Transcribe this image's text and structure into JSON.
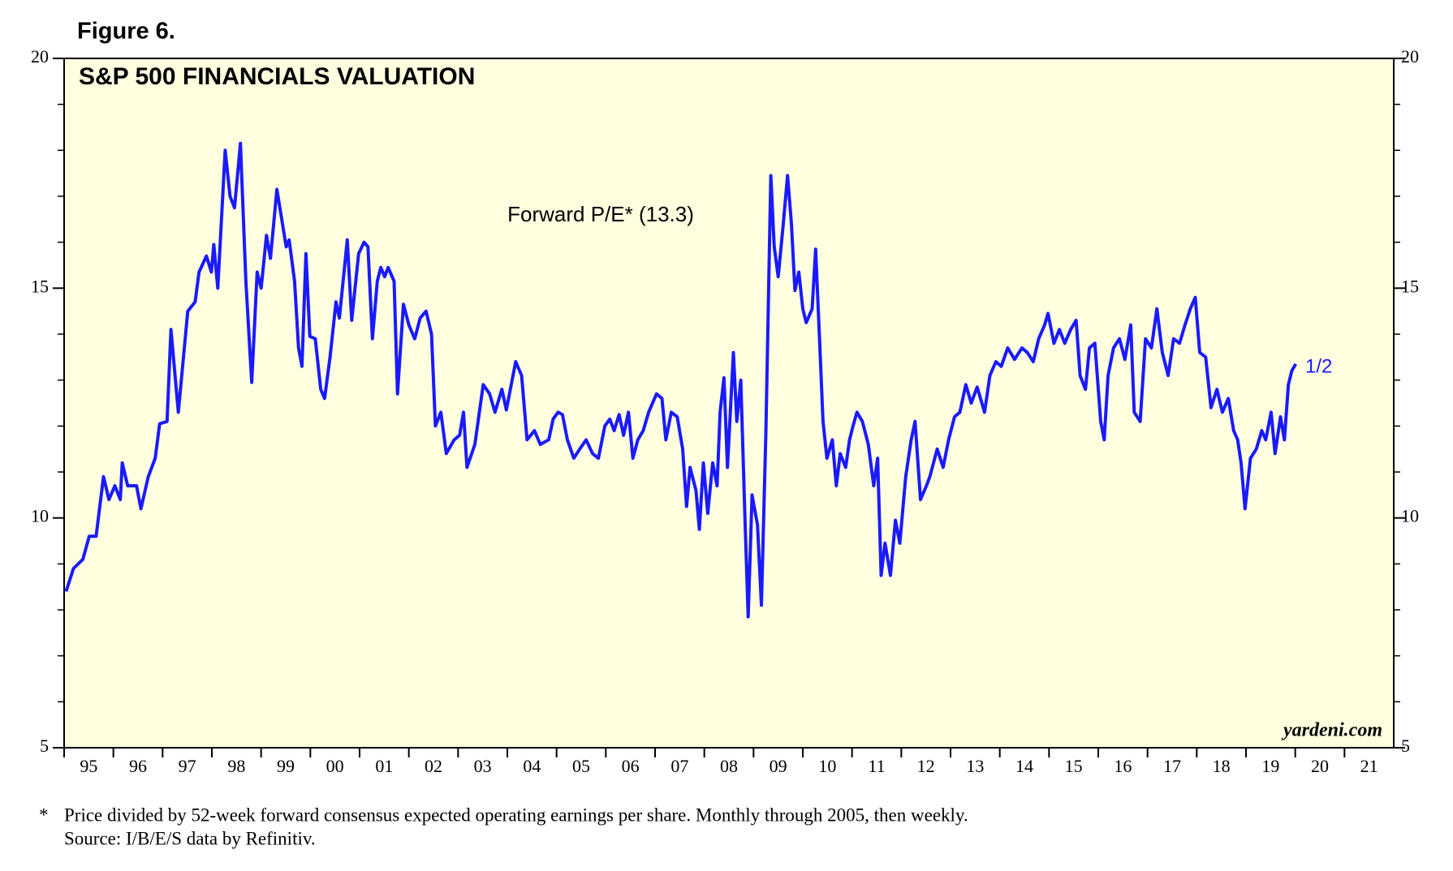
{
  "chart_data": {
    "type": "line",
    "figure_label": "Figure 6.",
    "title": "S&P 500 FINANCIALS VALUATION",
    "annotation": "Forward P/E* (13.3)",
    "end_label": "1/2",
    "watermark": "yardeni.com",
    "footnote_marker": "*",
    "footnote": "Price divided by 52-week forward consensus expected operating earnings per share. Monthly through 2005, then weekly.",
    "source": "Source: I/B/E/S data by Refinitiv.",
    "background": "#ffffe0",
    "series": [
      {
        "name": "Forward P/E",
        "color": "#1a1aff",
        "x": [
          1995.04,
          1995.19,
          1995.38,
          1995.51,
          1995.65,
          1995.8,
          1995.91,
          1996.03,
          1996.14,
          1996.18,
          1996.29,
          1996.47,
          1996.56,
          1996.71,
          1996.85,
          1996.94,
          1997.09,
          1997.17,
          1997.32,
          1997.51,
          1997.66,
          1997.74,
          1997.89,
          1997.99,
          1998.04,
          1998.12,
          1998.27,
          1998.37,
          1998.46,
          1998.58,
          1998.69,
          1998.81,
          1998.92,
          1999.0,
          1999.11,
          1999.19,
          1999.32,
          1999.51,
          1999.57,
          1999.68,
          1999.76,
          1999.83,
          1999.91,
          1999.99,
          2000.1,
          2000.21,
          2000.29,
          2000.4,
          2000.52,
          2000.59,
          2000.75,
          2000.84,
          2000.98,
          2001.09,
          2001.17,
          2001.26,
          2001.36,
          2001.43,
          2001.51,
          2001.58,
          2001.7,
          2001.77,
          2001.89,
          2002.0,
          2002.12,
          2002.23,
          2002.35,
          2002.46,
          2002.54,
          2002.65,
          2002.76,
          2002.92,
          2003.03,
          2003.11,
          2003.18,
          2003.34,
          2003.51,
          2003.64,
          2003.75,
          2003.89,
          2003.98,
          2004.17,
          2004.29,
          2004.4,
          2004.55,
          2004.67,
          2004.84,
          2004.93,
          2005.03,
          2005.12,
          2005.22,
          2005.35,
          2005.47,
          2005.6,
          2005.73,
          2005.85,
          2005.98,
          2006.08,
          2006.17,
          2006.27,
          2006.36,
          2006.46,
          2006.55,
          2006.65,
          2006.76,
          2006.87,
          2007.03,
          2007.14,
          2007.22,
          2007.33,
          2007.45,
          2007.56,
          2007.64,
          2007.71,
          2007.83,
          2007.9,
          2007.98,
          2008.07,
          2008.17,
          2008.26,
          2008.32,
          2008.4,
          2008.47,
          2008.59,
          2008.66,
          2008.74,
          2008.83,
          2008.89,
          2008.97,
          2009.08,
          2009.16,
          2009.25,
          2009.35,
          2009.42,
          2009.5,
          2009.6,
          2009.69,
          2009.77,
          2009.84,
          2009.92,
          2010.0,
          2010.07,
          2010.19,
          2010.26,
          2010.34,
          2010.41,
          2010.49,
          2010.6,
          2010.68,
          2010.76,
          2010.87,
          2010.95,
          2011.02,
          2011.1,
          2011.21,
          2011.33,
          2011.44,
          2011.52,
          2011.59,
          2011.67,
          2011.78,
          2011.88,
          2011.97,
          2012.09,
          2012.2,
          2012.28,
          2012.39,
          2012.51,
          2012.58,
          2012.73,
          2012.85,
          2012.96,
          2013.08,
          2013.19,
          2013.31,
          2013.42,
          2013.54,
          2013.69,
          2013.8,
          2013.92,
          2014.03,
          2014.16,
          2014.3,
          2014.45,
          2014.56,
          2014.68,
          2014.79,
          2014.91,
          2014.98,
          2015.1,
          2015.21,
          2015.32,
          2015.44,
          2015.55,
          2015.63,
          2015.74,
          2015.82,
          2015.93,
          2016.05,
          2016.12,
          2016.2,
          2016.31,
          2016.43,
          2016.54,
          2016.66,
          2016.73,
          2016.85,
          2016.96,
          2017.08,
          2017.19,
          2017.3,
          2017.42,
          2017.53,
          2017.65,
          2017.76,
          2017.87,
          2017.97,
          2018.06,
          2018.18,
          2018.29,
          2018.41,
          2018.52,
          2018.64,
          2018.75,
          2018.83,
          2018.9,
          2018.98,
          2019.09,
          2019.21,
          2019.32,
          2019.4,
          2019.51,
          2019.59,
          2019.7,
          2019.78,
          2019.86,
          2019.93,
          2020.01
        ],
        "values": [
          8.4,
          8.9,
          9.1,
          9.6,
          9.6,
          10.9,
          10.4,
          10.7,
          10.4,
          11.2,
          10.7,
          10.7,
          10.2,
          10.9,
          11.3,
          12.05,
          12.1,
          14.1,
          12.3,
          14.5,
          14.7,
          15.35,
          15.7,
          15.35,
          15.95,
          15.0,
          18.0,
          17.0,
          16.75,
          18.15,
          15.15,
          12.95,
          15.35,
          15.0,
          16.15,
          15.65,
          17.15,
          15.9,
          16.05,
          15.15,
          13.7,
          13.3,
          15.75,
          13.95,
          13.9,
          12.8,
          12.6,
          13.5,
          14.7,
          14.35,
          16.05,
          14.3,
          15.75,
          16.0,
          15.9,
          13.9,
          15.15,
          15.45,
          15.25,
          15.45,
          15.15,
          12.7,
          14.65,
          14.2,
          13.9,
          14.35,
          14.5,
          14.0,
          12.0,
          12.3,
          11.4,
          11.7,
          11.8,
          12.3,
          11.1,
          11.6,
          12.9,
          12.7,
          12.3,
          12.8,
          12.35,
          13.4,
          13.1,
          11.7,
          11.9,
          11.6,
          11.7,
          12.15,
          12.3,
          12.25,
          11.7,
          11.3,
          11.5,
          11.7,
          11.4,
          11.3,
          12.0,
          12.15,
          11.9,
          12.25,
          11.8,
          12.3,
          11.3,
          11.7,
          11.9,
          12.3,
          12.7,
          12.6,
          11.7,
          12.3,
          12.2,
          11.5,
          10.25,
          11.1,
          10.6,
          9.75,
          11.2,
          10.1,
          11.2,
          10.7,
          12.3,
          13.05,
          11.1,
          13.6,
          12.1,
          13.0,
          9.85,
          7.85,
          10.5,
          9.85,
          8.1,
          11.85,
          17.45,
          15.9,
          15.25,
          16.35,
          17.45,
          16.4,
          14.95,
          15.35,
          14.55,
          14.25,
          14.55,
          15.85,
          13.9,
          12.1,
          11.3,
          11.7,
          10.7,
          11.4,
          11.1,
          11.7,
          12.0,
          12.3,
          12.1,
          11.6,
          10.7,
          11.3,
          8.75,
          9.45,
          8.75,
          9.95,
          9.45,
          10.9,
          11.7,
          12.1,
          10.4,
          10.7,
          10.9,
          11.5,
          11.1,
          11.7,
          12.2,
          12.3,
          12.9,
          12.5,
          12.85,
          12.3,
          13.1,
          13.4,
          13.3,
          13.7,
          13.45,
          13.7,
          13.6,
          13.4,
          13.9,
          14.2,
          14.45,
          13.8,
          14.1,
          13.8,
          14.1,
          14.3,
          13.1,
          12.8,
          13.7,
          13.8,
          12.1,
          11.7,
          13.1,
          13.7,
          13.9,
          13.45,
          14.2,
          12.3,
          12.1,
          13.9,
          13.7,
          14.55,
          13.6,
          13.1,
          13.9,
          13.8,
          14.2,
          14.55,
          14.8,
          13.6,
          13.5,
          12.4,
          12.8,
          12.3,
          12.6,
          11.9,
          11.7,
          11.2,
          10.2,
          11.3,
          11.5,
          11.9,
          11.7,
          12.3,
          11.4,
          12.2,
          11.7,
          12.9,
          13.2,
          13.35
        ]
      }
    ],
    "xlim": [
      1995,
      2022
    ],
    "xticks": [
      {
        "value": 1995,
        "label": "95"
      },
      {
        "value": 1996,
        "label": "96"
      },
      {
        "value": 1997,
        "label": "97"
      },
      {
        "value": 1998,
        "label": "98"
      },
      {
        "value": 1999,
        "label": "99"
      },
      {
        "value": 2000,
        "label": "00"
      },
      {
        "value": 2001,
        "label": "01"
      },
      {
        "value": 2002,
        "label": "02"
      },
      {
        "value": 2003,
        "label": "03"
      },
      {
        "value": 2004,
        "label": "04"
      },
      {
        "value": 2005,
        "label": "05"
      },
      {
        "value": 2006,
        "label": "06"
      },
      {
        "value": 2007,
        "label": "07"
      },
      {
        "value": 2008,
        "label": "08"
      },
      {
        "value": 2009,
        "label": "09"
      },
      {
        "value": 2010,
        "label": "10"
      },
      {
        "value": 2011,
        "label": "11"
      },
      {
        "value": 2012,
        "label": "12"
      },
      {
        "value": 2013,
        "label": "13"
      },
      {
        "value": 2014,
        "label": "14"
      },
      {
        "value": 2015,
        "label": "15"
      },
      {
        "value": 2016,
        "label": "16"
      },
      {
        "value": 2017,
        "label": "17"
      },
      {
        "value": 2018,
        "label": "18"
      },
      {
        "value": 2019,
        "label": "19"
      },
      {
        "value": 2020,
        "label": "20"
      },
      {
        "value": 2021,
        "label": "21"
      }
    ],
    "ylim": [
      5,
      20
    ],
    "yticks": [
      5,
      10,
      15,
      20
    ],
    "y2lim": [
      5,
      20
    ],
    "y2ticks": [
      5,
      10,
      15,
      20
    ]
  }
}
